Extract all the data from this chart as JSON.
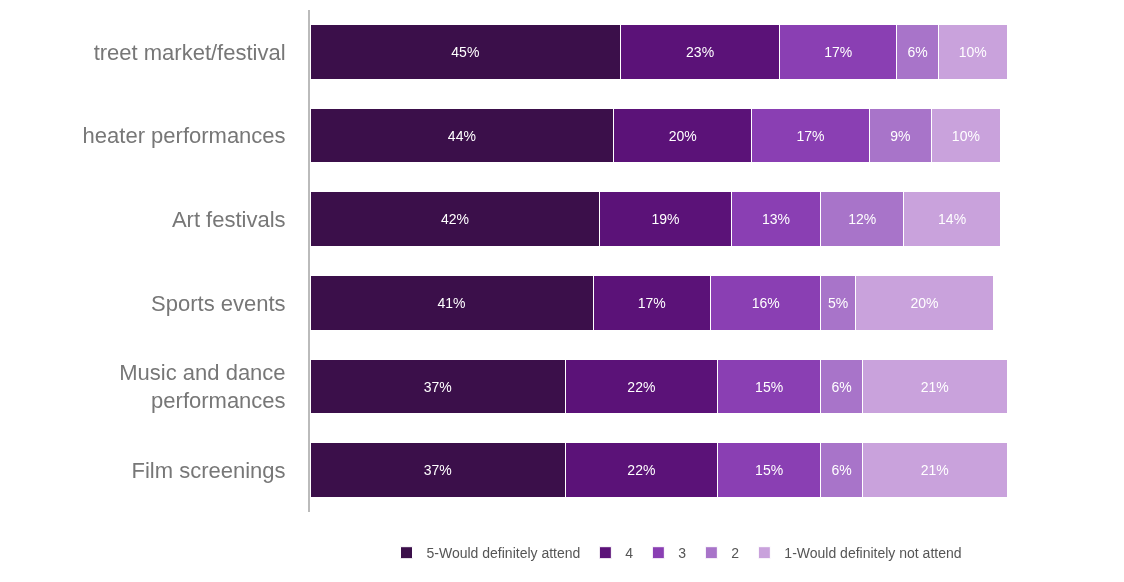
{
  "chart_data": {
    "type": "bar",
    "orientation": "horizontal",
    "stacked": true,
    "legend": "bottom",
    "categories": [
      "treet market/festival",
      "heater performances",
      "Art festivals",
      "Sports events",
      "Music and dance\nperformances",
      "Film screenings"
    ],
    "series": [
      {
        "name": "5-Would definitely attend",
        "color": "#3b0f4a",
        "values": [
          45,
          44,
          42,
          41,
          37,
          37
        ],
        "value_labels": [
          "45%",
          "44%",
          "42%",
          "41%",
          "37%",
          "37%"
        ]
      },
      {
        "name": "4",
        "color": "#5b1278",
        "values": [
          23,
          20,
          19,
          17,
          22,
          22
        ],
        "value_labels": [
          "23%",
          "20%",
          "19%",
          "17%",
          "22%",
          "22%"
        ]
      },
      {
        "name": "3",
        "color": "#8a3fb3",
        "values": [
          17,
          17,
          13,
          16,
          15,
          15
        ],
        "value_labels": [
          "17%",
          "17%",
          "13%",
          "16%",
          "15%",
          "15%"
        ]
      },
      {
        "name": "2",
        "color": "#a874c9",
        "values": [
          6,
          9,
          12,
          5,
          6,
          6
        ],
        "value_labels": [
          "6%",
          "9%",
          "12%",
          "5%",
          "6%",
          "6%"
        ]
      },
      {
        "name": "1-Would definitely not attend",
        "color": "#c9a2dc",
        "values": [
          10,
          10,
          14,
          20,
          21,
          21
        ],
        "value_labels": [
          "10%",
          "10%",
          "14%",
          "20%",
          "21%",
          "21%"
        ]
      }
    ]
  }
}
